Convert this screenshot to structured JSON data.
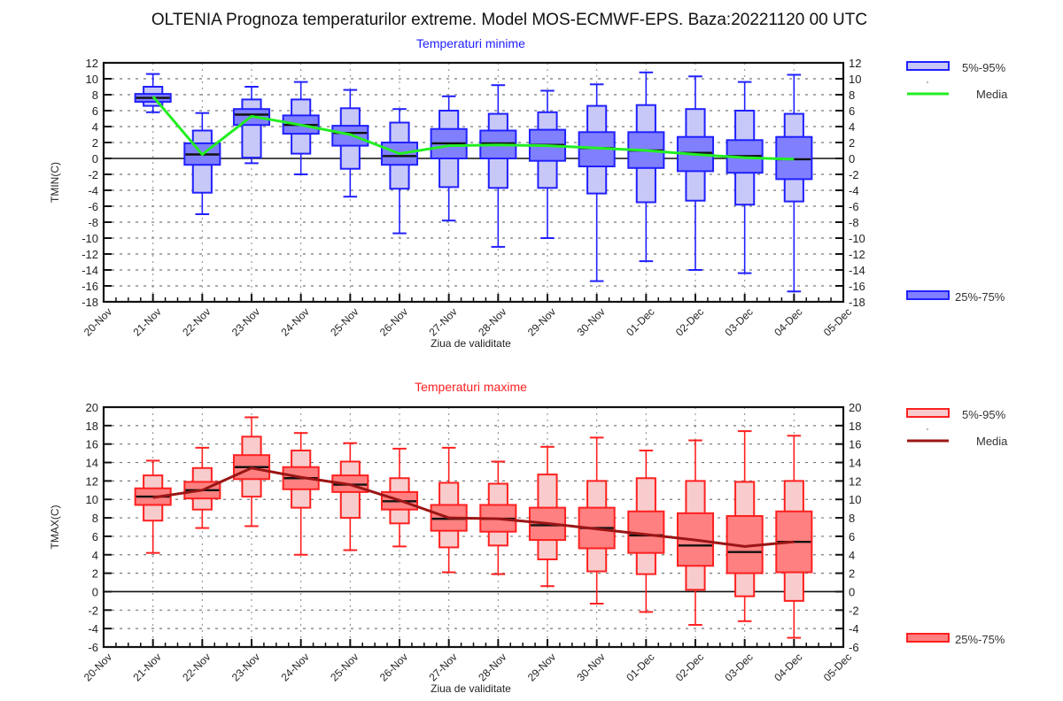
{
  "page": {
    "title": "OLTENIA  Prognoza temperaturilor extreme.  Model MOS-ECMWF-EPS. Baza:20221120 00 UTC"
  },
  "colors": {
    "tmin_edge": "#2020ff",
    "tmin_box": "#8080ff",
    "tmin_whiskbox": "#c8c8f8",
    "tmin_mean": "#22ee22",
    "tmax_edge": "#ff2020",
    "tmax_box": "#ff8080",
    "tmax_whiskbox": "#f8cccc",
    "tmax_mean": "#9b1515",
    "median": "#111111",
    "title_tmin": "#2020ff",
    "title_tmax": "#ff2020"
  },
  "chart_data": [
    {
      "type": "box",
      "id": "tmin",
      "title": "Temperaturi minime",
      "xlabel": "Ziua de validitate",
      "ylabel": "TMIN(C)",
      "ylim": [
        -18,
        12
      ],
      "yticks": [
        12,
        10,
        8,
        6,
        4,
        2,
        0,
        -2,
        -4,
        -6,
        -8,
        -10,
        -12,
        -14,
        -16,
        -18
      ],
      "xticks": [
        "20-Nov",
        "21-Nov",
        "22-Nov",
        "23-Nov",
        "24-Nov",
        "25-Nov",
        "26-Nov",
        "27-Nov",
        "28-Nov",
        "29-Nov",
        "30-Nov",
        "01-Dec",
        "02-Dec",
        "03-Dec",
        "04-Dec",
        "05-Dec"
      ],
      "grid": true,
      "legend": {
        "position": "right",
        "entries": [
          "5%-95%",
          "Media",
          "25%-75%"
        ]
      },
      "categories": [
        "21-Nov",
        "22-Nov",
        "23-Nov",
        "24-Nov",
        "25-Nov",
        "26-Nov",
        "27-Nov",
        "28-Nov",
        "29-Nov",
        "30-Nov",
        "01-Dec",
        "02-Dec",
        "03-Dec",
        "04-Dec"
      ],
      "min": [
        5.8,
        -7.0,
        -0.6,
        -2.0,
        -4.8,
        -9.4,
        -7.8,
        -11.1,
        -10.0,
        -15.4,
        -12.9,
        -14.0,
        -14.4,
        -16.7
      ],
      "p5": [
        6.6,
        -4.3,
        0.1,
        0.6,
        -1.3,
        -3.8,
        -3.6,
        -3.7,
        -3.7,
        -4.4,
        -5.5,
        -5.3,
        -5.8,
        -5.4
      ],
      "p25": [
        7.1,
        -0.8,
        4.2,
        3.1,
        1.6,
        -0.8,
        0.0,
        0.0,
        -0.3,
        -1.0,
        -1.2,
        -1.6,
        -1.8,
        -2.6
      ],
      "median": [
        7.6,
        0.5,
        5.5,
        4.2,
        3.2,
        0.3,
        1.9,
        1.9,
        1.7,
        1.3,
        1.0,
        0.7,
        0.3,
        -0.1
      ],
      "p75": [
        8.1,
        1.9,
        6.2,
        5.4,
        4.1,
        2.0,
        3.7,
        3.5,
        3.6,
        3.3,
        3.3,
        2.7,
        2.3,
        2.7
      ],
      "p95": [
        9.0,
        3.5,
        7.4,
        7.4,
        6.3,
        4.5,
        6.0,
        5.6,
        5.8,
        6.6,
        6.7,
        6.2,
        6.0,
        5.6
      ],
      "max": [
        10.6,
        5.7,
        9.0,
        9.6,
        8.6,
        6.2,
        7.8,
        9.2,
        8.5,
        9.3,
        10.8,
        10.3,
        9.6,
        10.5
      ],
      "mean": [
        7.8,
        0.5,
        5.3,
        4.2,
        3.0,
        0.6,
        1.6,
        1.7,
        1.6,
        1.3,
        1.0,
        0.5,
        0.1,
        -0.1
      ]
    },
    {
      "type": "box",
      "id": "tmax",
      "title": "Temperaturi maxime",
      "xlabel": "Ziua de validitate",
      "ylabel": "TMAX(C)",
      "ylim": [
        -6,
        20
      ],
      "yticks": [
        20,
        18,
        16,
        14,
        12,
        10,
        8,
        6,
        4,
        2,
        0,
        -2,
        -4,
        -6
      ],
      "xticks": [
        "20-Nov",
        "21-Nov",
        "22-Nov",
        "23-Nov",
        "24-Nov",
        "25-Nov",
        "26-Nov",
        "27-Nov",
        "28-Nov",
        "29-Nov",
        "30-Nov",
        "01-Dec",
        "02-Dec",
        "03-Dec",
        "04-Dec",
        "05-Dec"
      ],
      "grid": true,
      "legend": {
        "position": "right",
        "entries": [
          "5%-95%",
          "Media",
          "25%-75%"
        ]
      },
      "categories": [
        "21-Nov",
        "22-Nov",
        "23-Nov",
        "24-Nov",
        "25-Nov",
        "26-Nov",
        "27-Nov",
        "28-Nov",
        "29-Nov",
        "30-Nov",
        "01-Dec",
        "02-Dec",
        "03-Dec",
        "04-Dec"
      ],
      "min": [
        4.2,
        6.9,
        7.1,
        4.0,
        4.5,
        4.9,
        2.1,
        1.9,
        0.6,
        -1.3,
        -2.2,
        -3.6,
        -3.2,
        -5.0
      ],
      "p5": [
        7.7,
        8.9,
        10.3,
        9.1,
        8.0,
        7.4,
        4.8,
        5.0,
        3.5,
        2.2,
        1.9,
        0.2,
        -0.5,
        -1.0
      ],
      "p25": [
        9.4,
        10.1,
        12.2,
        11.1,
        10.8,
        8.9,
        6.6,
        6.5,
        5.6,
        4.7,
        4.2,
        2.8,
        2.0,
        2.1
      ],
      "median": [
        10.3,
        11.0,
        13.5,
        12.3,
        11.6,
        9.8,
        7.9,
        7.9,
        7.2,
        6.9,
        6.1,
        5.0,
        4.3,
        5.4
      ],
      "p75": [
        11.2,
        11.9,
        14.8,
        13.5,
        12.6,
        10.8,
        9.4,
        9.4,
        9.1,
        9.1,
        8.7,
        8.5,
        8.2,
        8.7
      ],
      "p95": [
        12.6,
        13.4,
        16.8,
        15.3,
        14.1,
        12.3,
        11.8,
        11.7,
        12.7,
        12.0,
        12.3,
        12.0,
        11.9,
        12.0
      ],
      "max": [
        14.2,
        15.6,
        18.9,
        17.2,
        16.1,
        15.5,
        15.6,
        14.1,
        15.7,
        16.7,
        15.3,
        16.4,
        17.4,
        16.9
      ],
      "mean": [
        10.2,
        11.0,
        13.4,
        12.4,
        11.6,
        9.9,
        8.0,
        7.9,
        7.4,
        6.8,
        6.2,
        5.6,
        4.9,
        5.4
      ]
    }
  ]
}
